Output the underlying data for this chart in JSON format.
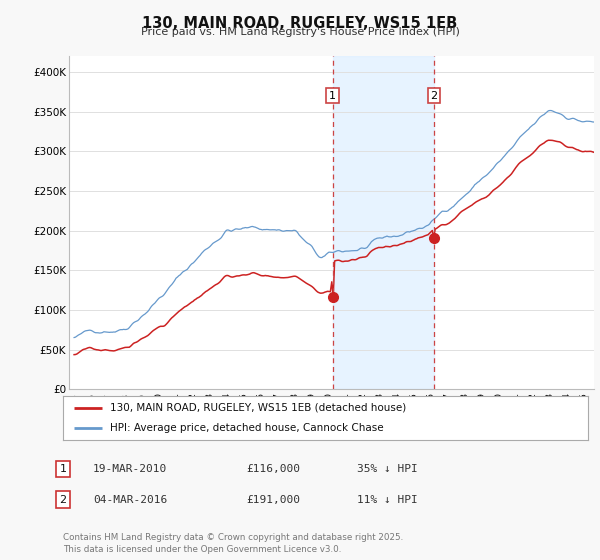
{
  "title": "130, MAIN ROAD, RUGELEY, WS15 1EB",
  "subtitle": "Price paid vs. HM Land Registry's House Price Index (HPI)",
  "ylabel_ticks": [
    "£0",
    "£50K",
    "£100K",
    "£150K",
    "£200K",
    "£250K",
    "£300K",
    "£350K",
    "£400K"
  ],
  "ytick_values": [
    0,
    50000,
    100000,
    150000,
    200000,
    250000,
    300000,
    350000,
    400000
  ],
  "ylim": [
    0,
    420000
  ],
  "xlim_start": 1994.7,
  "xlim_end": 2025.6,
  "sale1_x": 2010.22,
  "sale1_y": 116000,
  "sale2_x": 2016.18,
  "sale2_y": 191000,
  "vline_color": "#cc4444",
  "shade_color": "#ddeeff",
  "legend_line1": "130, MAIN ROAD, RUGELEY, WS15 1EB (detached house)",
  "legend_line2": "HPI: Average price, detached house, Cannock Chase",
  "line1_color": "#cc2222",
  "line2_color": "#6699cc",
  "table_rows": [
    {
      "num": "1",
      "date": "19-MAR-2010",
      "price": "£116,000",
      "hpi": "35% ↓ HPI"
    },
    {
      "num": "2",
      "date": "04-MAR-2016",
      "price": "£191,000",
      "hpi": "11% ↓ HPI"
    }
  ],
  "footer": "Contains HM Land Registry data © Crown copyright and database right 2025.\nThis data is licensed under the Open Government Licence v3.0.",
  "background_color": "#f8f8f8",
  "plot_background": "#ffffff",
  "grid_color": "#e0e0e0"
}
